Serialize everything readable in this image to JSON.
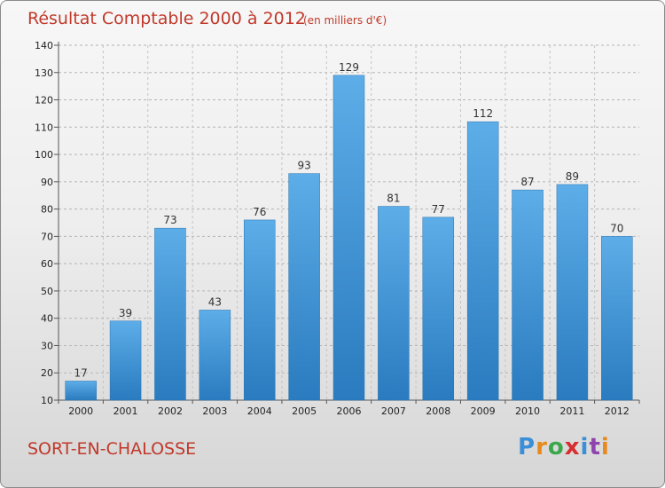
{
  "chart_data": {
    "type": "bar",
    "title": "Résultat Comptable 2000 à 2012",
    "unit_note": "(en milliers d'€)",
    "categories": [
      "2000",
      "2001",
      "2002",
      "2003",
      "2004",
      "2005",
      "2006",
      "2007",
      "2008",
      "2009",
      "2010",
      "2011",
      "2012"
    ],
    "values": [
      17,
      39,
      73,
      43,
      76,
      93,
      129,
      81,
      77,
      112,
      87,
      89,
      70
    ],
    "ylim": [
      10,
      140
    ],
    "yticks": [
      10,
      20,
      30,
      40,
      50,
      60,
      70,
      80,
      90,
      100,
      110,
      120,
      130,
      140
    ],
    "grid": true,
    "bar_color": "#3d8fd4",
    "xlabel": "",
    "ylabel": ""
  },
  "footer": {
    "commune": "SORT-EN-CHALOSSE",
    "brand_letters": [
      "P",
      "r",
      "o",
      "x",
      "i",
      "t",
      "i"
    ],
    "brand_colors": [
      "#3b8fd8",
      "#e8891c",
      "#3aa84a",
      "#d82d2d",
      "#3b8fd8",
      "#8e44ad",
      "#e8891c"
    ]
  }
}
